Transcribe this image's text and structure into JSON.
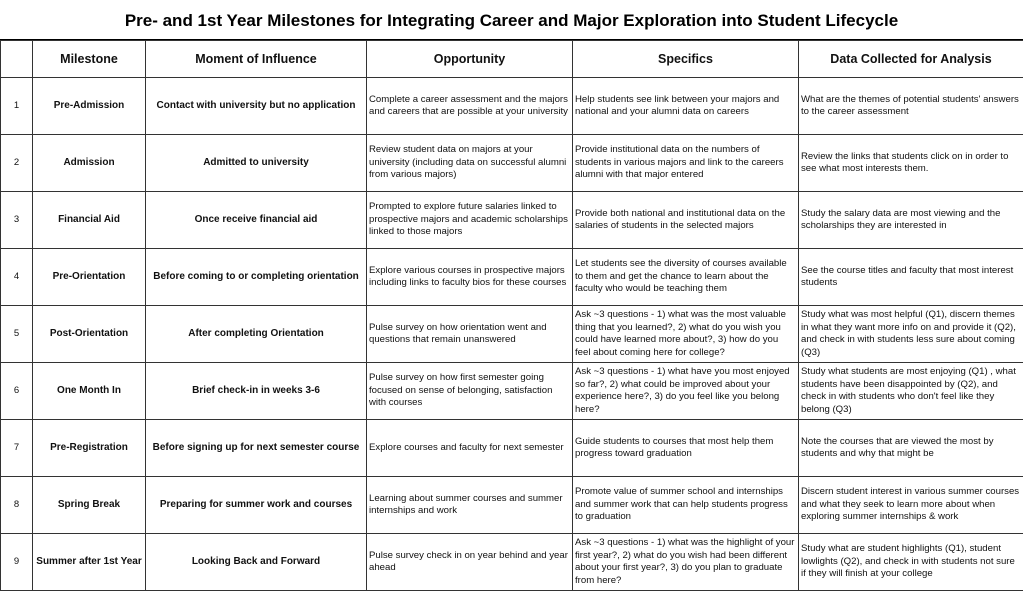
{
  "title": "Pre- and 1st Year Milestones for Integrating Career and Major Exploration into Student Lifecycle",
  "columns": [
    "",
    "Milestone",
    "Moment of Influence",
    "Opportunity",
    "Specifics",
    "Data Collected for Analysis"
  ],
  "rows": [
    {
      "num": "1",
      "milestone": "Pre-Admission",
      "moment": "Contact with university but no application",
      "opportunity": "Complete a career assessment and the majors and careers that are possible at your university",
      "specifics": "Help students see link between your majors and national and your alumni data on careers",
      "data": "What are the themes of potential students' answers to the career assessment"
    },
    {
      "num": "2",
      "milestone": "Admission",
      "moment": "Admitted to university",
      "opportunity": "Review student data on majors at your university (including data on successful alumni from various majors)",
      "specifics": "Provide institutional data on the numbers of students in various majors and link to the careers alumni with that major entered",
      "data": "Review the links that students click on in order to see what most interests them."
    },
    {
      "num": "3",
      "milestone": "Financial Aid",
      "moment": "Once receive financial aid",
      "opportunity": "Prompted to explore future salaries linked to prospective majors and academic scholarships linked to those majors",
      "specifics": "Provide both national and institutional data on the salaries of students in the selected majors",
      "data": "Study the salary data are most viewing and the scholarships they are interested in"
    },
    {
      "num": "4",
      "milestone": "Pre-Orientation",
      "moment": "Before coming to or completing orientation",
      "opportunity": "Explore various courses in prospective majors including links to faculty bios for these courses",
      "specifics": "Let students see the diversity of courses available to them and get the chance to learn about the faculty who would be teaching them",
      "data": "See the course titles and faculty that most interest students"
    },
    {
      "num": "5",
      "milestone": "Post-Orientation",
      "moment": "After completing Orientation",
      "opportunity": "Pulse survey on how orientation went and questions that remain unanswered",
      "specifics": "Ask ~3 questions - 1) what was the most valuable thing that you learned?, 2) what do you wish you could have learned more about?, 3) how do you feel about coming here for college?",
      "data": "Study what was most helpful (Q1), discern themes in what they want more info on and provide it (Q2), and check in with students less sure about coming (Q3)"
    },
    {
      "num": "6",
      "milestone": "One Month In",
      "moment": "Brief check-in in weeks 3-6",
      "opportunity": "Pulse survey on how first semester going focused on sense of belonging, satisfaction with courses",
      "specifics": "Ask ~3 questions - 1) what have you most enjoyed so far?, 2) what could be improved about your experience here?, 3) do you feel like you belong here?",
      "data": "Study what students are most enjoying (Q1) , what students have been disappointed by (Q2), and check in with students who don't feel like they belong (Q3)"
    },
    {
      "num": "7",
      "milestone": "Pre-Registration",
      "moment": "Before signing up for next semester course",
      "opportunity": "Explore courses and faculty for next semester",
      "specifics": "Guide students to courses that most help them progress toward graduation",
      "data": "Note the courses that are viewed the most by students and why that might be"
    },
    {
      "num": "8",
      "milestone": "Spring Break",
      "moment": "Preparing for summer work and courses",
      "opportunity": "Learning about summer courses and summer internships and work",
      "specifics": "Promote value of summer school and internships and summer work that can help students progress to graduation",
      "data": "Discern student interest in various summer courses and what they seek to learn more about when exploring summer internships & work"
    },
    {
      "num": "9",
      "milestone": "Summer after 1st Year",
      "moment": "Looking Back and Forward",
      "opportunity": "Pulse survey check in on year behind and year ahead",
      "specifics": "Ask ~3 questions - 1) what was the highlight of your first year?, 2) what do you wish had been different about your first year?, 3) do you plan to graduate from here?",
      "data": "Study what are student highlights (Q1), student lowlights (Q2), and check in with students not sure if they will finish at your college"
    }
  ]
}
